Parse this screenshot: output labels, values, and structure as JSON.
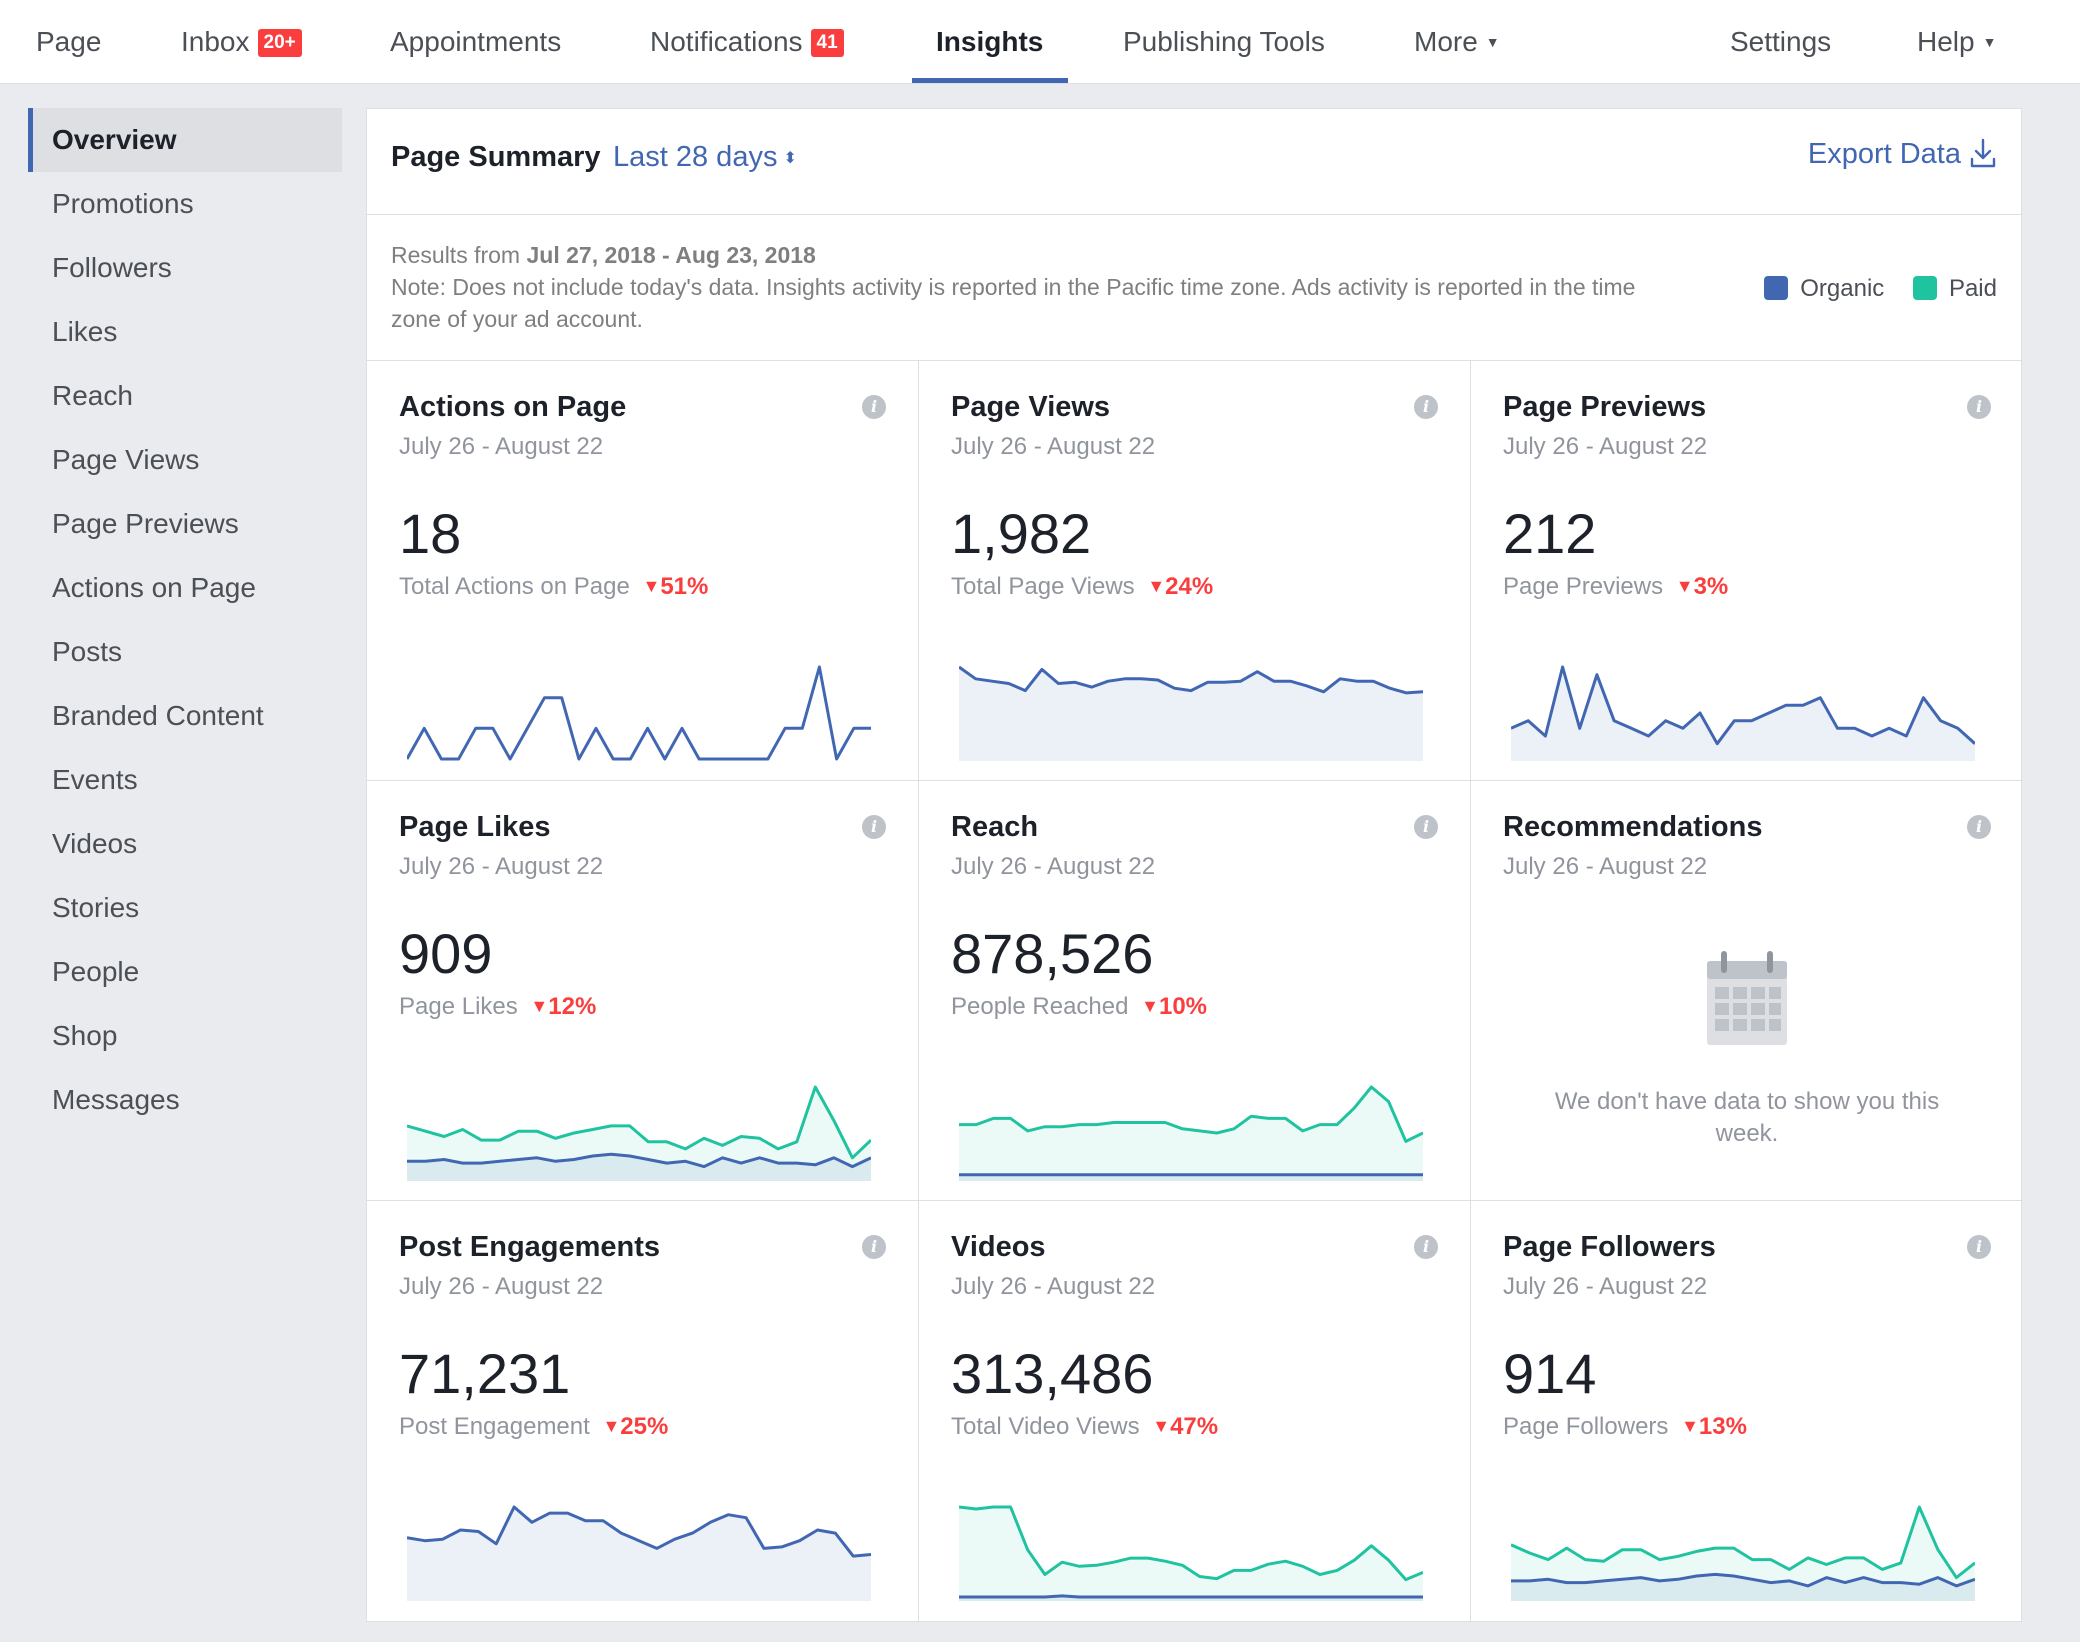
{
  "nav": {
    "items": [
      {
        "key": "page",
        "label": "Page"
      },
      {
        "key": "inbox",
        "label": "Inbox",
        "badge": "20+"
      },
      {
        "key": "appointments",
        "label": "Appointments"
      },
      {
        "key": "notifications",
        "label": "Notifications",
        "badge": "41"
      },
      {
        "key": "insights",
        "label": "Insights"
      },
      {
        "key": "publishing",
        "label": "Publishing Tools"
      },
      {
        "key": "more",
        "label": "More"
      },
      {
        "key": "settings",
        "label": "Settings"
      },
      {
        "key": "help",
        "label": "Help"
      }
    ],
    "active": "Insights"
  },
  "sidebar": {
    "items": [
      {
        "label": "Overview"
      },
      {
        "label": "Promotions"
      },
      {
        "label": "Followers"
      },
      {
        "label": "Likes"
      },
      {
        "label": "Reach"
      },
      {
        "label": "Page Views"
      },
      {
        "label": "Page Previews"
      },
      {
        "label": "Actions on Page"
      },
      {
        "label": "Posts"
      },
      {
        "label": "Branded Content"
      },
      {
        "label": "Events"
      },
      {
        "label": "Videos"
      },
      {
        "label": "Stories"
      },
      {
        "label": "People"
      },
      {
        "label": "Shop"
      },
      {
        "label": "Messages"
      }
    ]
  },
  "summary": {
    "title": "Page Summary",
    "range": "Last 28 days",
    "export_label": "Export Data",
    "results_prefix": "Results from",
    "results_range": "Jul 27, 2018 - Aug 23, 2018",
    "note": "Note: Does not include today's data. Insights activity is reported in the Pacific time zone. Ads activity is reported in the time zone of your ad account."
  },
  "legend": {
    "organic_label": "Organic",
    "paid_label": "Paid",
    "organic_color": "#4267b2",
    "paid_color": "#20c3a0"
  },
  "cards": [
    {
      "title": "Actions on Page",
      "date": "July 26 - August 22",
      "value": "18",
      "sub": "Total Actions on Page",
      "delta": "51%"
    },
    {
      "title": "Page Views",
      "date": "July 26 - August 22",
      "value": "1,982",
      "sub": "Total Page Views",
      "delta": "24%"
    },
    {
      "title": "Page Previews",
      "date": "July 26 - August 22",
      "value": "212",
      "sub": "Page Previews",
      "delta": "3%"
    },
    {
      "title": "Page Likes",
      "date": "July 26 - August 22",
      "value": "909",
      "sub": "Page Likes",
      "delta": "12%"
    },
    {
      "title": "Reach",
      "date": "July 26 - August 22",
      "value": "878,526",
      "sub": "People Reached",
      "delta": "10%"
    },
    {
      "title": "Recommendations",
      "date": "July 26 - August 22",
      "nodata": "We don't have data to show you this week."
    },
    {
      "title": "Post Engagements",
      "date": "July 26 - August 22",
      "value": "71,231",
      "sub": "Post Engagement",
      "delta": "25%"
    },
    {
      "title": "Videos",
      "date": "July 26 - August 22",
      "value": "313,486",
      "sub": "Total Video Views",
      "delta": "47%"
    },
    {
      "title": "Page Followers",
      "date": "July 26 - August 22",
      "value": "914",
      "sub": "Page Followers",
      "delta": "13%"
    }
  ],
  "chart_data": [
    {
      "type": "line",
      "title": "Actions on Page",
      "series": [
        {
          "name": "Organic",
          "color": "#4267b2",
          "fill": false,
          "values": [
            0,
            1,
            0,
            0,
            1,
            1,
            0,
            1,
            2,
            2,
            0,
            1,
            0,
            0,
            1,
            0,
            1,
            0,
            0,
            0,
            0,
            0,
            1,
            1,
            3,
            0,
            1,
            1
          ]
        }
      ]
    },
    {
      "type": "area",
      "title": "Page Views",
      "series": [
        {
          "name": "Organic",
          "color": "#4267b2",
          "fill": true,
          "values": [
            78,
            68,
            66,
            64,
            58,
            76,
            64,
            65,
            61,
            66,
            68,
            68,
            67,
            60,
            58,
            65,
            65,
            66,
            74,
            66,
            66,
            62,
            57,
            68,
            66,
            66,
            60,
            56,
            57
          ]
        }
      ]
    },
    {
      "type": "area",
      "title": "Page Previews",
      "series": [
        {
          "name": "Organic",
          "color": "#4267b2",
          "fill": true,
          "values": [
            4,
            5,
            3,
            12,
            4,
            11,
            5,
            4,
            3,
            5,
            4,
            6,
            2,
            5,
            5,
            6,
            7,
            7,
            8,
            4,
            4,
            3,
            4,
            3,
            8,
            5,
            4,
            2
          ]
        }
      ]
    },
    {
      "type": "area",
      "title": "Page Likes",
      "series": [
        {
          "name": "Paid",
          "color": "#20c3a0",
          "fill": true,
          "values": [
            30,
            27,
            24,
            28,
            22,
            22,
            27,
            27,
            23,
            26,
            28,
            30,
            30,
            21,
            21,
            17,
            23,
            19,
            24,
            23,
            17,
            21,
            52,
            33,
            12,
            22
          ]
        },
        {
          "name": "Organic",
          "color": "#4267b2",
          "fill": true,
          "values": [
            10,
            10,
            11,
            9,
            9,
            10,
            11,
            12,
            10,
            11,
            13,
            14,
            13,
            11,
            9,
            10,
            7,
            12,
            9,
            12,
            9,
            9,
            8,
            12,
            7,
            12
          ]
        }
      ]
    },
    {
      "type": "area",
      "title": "Reach",
      "series": [
        {
          "name": "Paid",
          "color": "#20c3a0",
          "fill": true,
          "values": [
            26,
            26,
            29,
            29,
            23,
            25,
            25,
            26,
            26,
            27,
            27,
            27,
            27,
            24,
            23,
            22,
            24,
            30,
            29,
            29,
            23,
            26,
            26,
            34,
            44,
            37,
            18,
            22
          ]
        },
        {
          "name": "Organic",
          "color": "#4267b2",
          "fill": true,
          "values": [
            2,
            2,
            2,
            2,
            2,
            2,
            2,
            2,
            2,
            2,
            2,
            2,
            2,
            2,
            2,
            2,
            2,
            2,
            2,
            2,
            2,
            2,
            2,
            2,
            2,
            2,
            2,
            2
          ]
        }
      ]
    },
    {
      "type": "area",
      "title": "Post Engagements",
      "series": [
        {
          "name": "Organic",
          "color": "#4267b2",
          "fill": true,
          "values": [
            40,
            38,
            39,
            45,
            44,
            36,
            60,
            50,
            56,
            56,
            51,
            51,
            43,
            38,
            33,
            39,
            43,
            50,
            55,
            53,
            33,
            34,
            38,
            45,
            43,
            28,
            29
          ]
        }
      ]
    },
    {
      "type": "area",
      "title": "Videos",
      "series": [
        {
          "name": "Paid",
          "color": "#20c3a0",
          "fill": true,
          "values": [
            90,
            88,
            90,
            90,
            48,
            24,
            36,
            32,
            33,
            36,
            40,
            40,
            37,
            33,
            22,
            20,
            28,
            28,
            34,
            37,
            32,
            24,
            28,
            38,
            52,
            38,
            19,
            26
          ]
        },
        {
          "name": "Organic",
          "color": "#4267b2",
          "fill": true,
          "values": [
            2,
            2,
            2,
            2,
            2,
            2,
            3,
            2,
            2,
            2,
            2,
            2,
            2,
            2,
            2,
            2,
            2,
            2,
            2,
            2,
            2,
            2,
            2,
            2,
            2,
            2,
            2,
            2
          ]
        }
      ]
    },
    {
      "type": "area",
      "title": "Page Followers",
      "series": [
        {
          "name": "Paid",
          "color": "#20c3a0",
          "fill": true,
          "values": [
            33,
            28,
            24,
            31,
            24,
            23,
            30,
            30,
            24,
            26,
            29,
            31,
            31,
            24,
            24,
            18,
            25,
            21,
            25,
            25,
            18,
            22,
            56,
            30,
            13,
            22
          ]
        },
        {
          "name": "Organic",
          "color": "#4267b2",
          "fill": true,
          "values": [
            11,
            11,
            12,
            10,
            10,
            11,
            12,
            13,
            11,
            12,
            14,
            15,
            14,
            12,
            10,
            11,
            8,
            13,
            10,
            13,
            10,
            10,
            9,
            13,
            8,
            12
          ]
        }
      ]
    }
  ]
}
